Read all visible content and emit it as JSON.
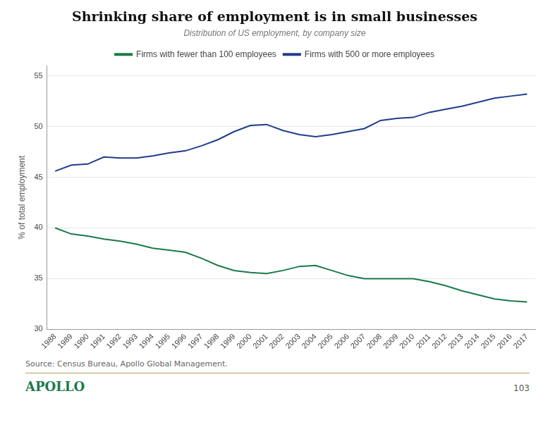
{
  "chart_data": {
    "type": "line",
    "title": "Shrinking share of employment is in small businesses",
    "subtitle": "Distribution of US employment, by company size",
    "y_label": "% of total employment",
    "x": [
      1988,
      1989,
      1990,
      1991,
      1992,
      1993,
      1994,
      1995,
      1996,
      1997,
      1998,
      1999,
      2000,
      2001,
      2002,
      2003,
      2004,
      2005,
      2006,
      2007,
      2008,
      2009,
      2010,
      2011,
      2012,
      2013,
      2014,
      2015,
      2016,
      2017
    ],
    "series": [
      {
        "name": "Firms with fewer than 100 employees",
        "color": "#1a7a4a",
        "values": [
          40.0,
          39.4,
          39.2,
          38.9,
          38.7,
          38.4,
          38.0,
          37.8,
          37.6,
          37.0,
          36.3,
          35.8,
          35.6,
          35.5,
          35.8,
          36.2,
          36.3,
          35.8,
          35.3,
          35.0,
          35.0,
          35.0,
          35.0,
          34.7,
          34.3,
          33.8,
          33.4,
          33.0,
          32.8,
          32.7
        ]
      },
      {
        "name": "Firms with 500 or more employees",
        "color": "#1f3d8c",
        "values": [
          45.6,
          46.2,
          46.3,
          47.0,
          46.9,
          46.9,
          47.1,
          47.4,
          47.6,
          48.1,
          48.7,
          49.5,
          50.1,
          50.2,
          49.6,
          49.2,
          49.0,
          49.2,
          49.5,
          49.8,
          50.6,
          50.8,
          50.9,
          51.4,
          51.7,
          52.0,
          52.4,
          52.8,
          53.0,
          53.2
        ]
      }
    ],
    "xlim": [
      1987.5,
      2017.5
    ],
    "xticks": [
      1988,
      1989,
      1990,
      1991,
      1992,
      1993,
      1994,
      1995,
      1996,
      1997,
      1998,
      1999,
      2000,
      2001,
      2002,
      2003,
      2004,
      2005,
      2006,
      2007,
      2008,
      2009,
      2010,
      2011,
      2012,
      2013,
      2014,
      2015,
      2016,
      2017
    ],
    "ylim": [
      30,
      56
    ],
    "yticks": [
      30,
      35,
      40,
      45,
      50,
      55
    ],
    "grid": "y",
    "legend": "top",
    "annotations": [
      "Source: Census Bureau, Apollo Global Management.",
      "APOLLO",
      "103"
    ]
  }
}
